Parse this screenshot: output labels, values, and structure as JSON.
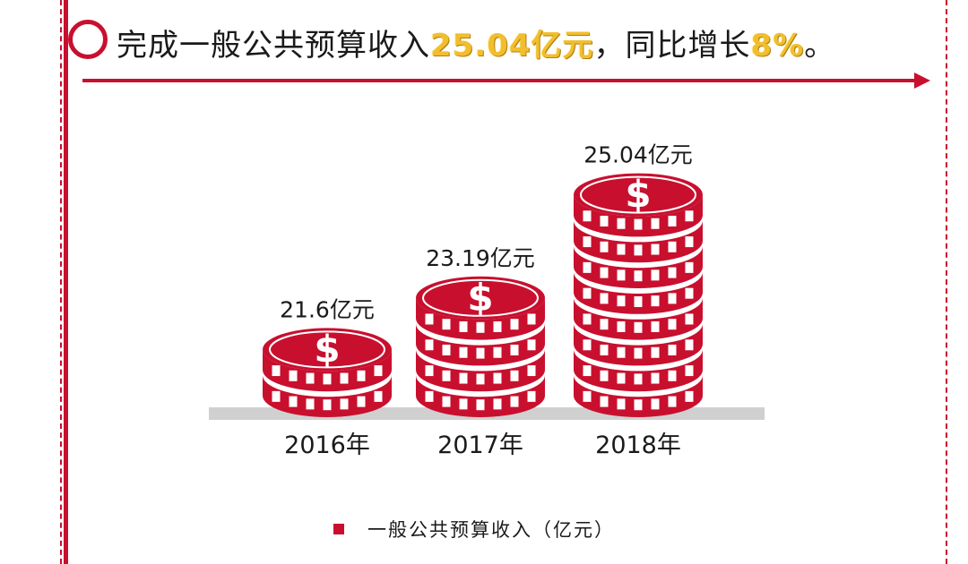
{
  "header": {
    "text_1": "完成一般公共预算收入",
    "highlight_1": "25.04亿元",
    "text_2": "，同比增长",
    "highlight_2": "8%",
    "text_3": "。"
  },
  "colors": {
    "accent": "#c8102e",
    "highlight": "#f2be2e",
    "baseline": "#d0d0d0"
  },
  "icons": {
    "coin": "dollar-coin-icon"
  },
  "chart_data": {
    "type": "bar",
    "categories": [
      "2016年",
      "2017年",
      "2018年"
    ],
    "series": [
      {
        "name": "一般公共预算收入（亿元）",
        "values": [
          21.6,
          23.19,
          25.04
        ]
      }
    ],
    "value_labels": [
      "21.6亿元",
      "23.19亿元",
      "25.04亿元"
    ],
    "coin_stack_counts": [
      2,
      4,
      8
    ],
    "title": "",
    "xlabel": "",
    "ylabel": "",
    "legend": {
      "placement": "bottom",
      "label": "一般公共预算收入（亿元）"
    }
  }
}
